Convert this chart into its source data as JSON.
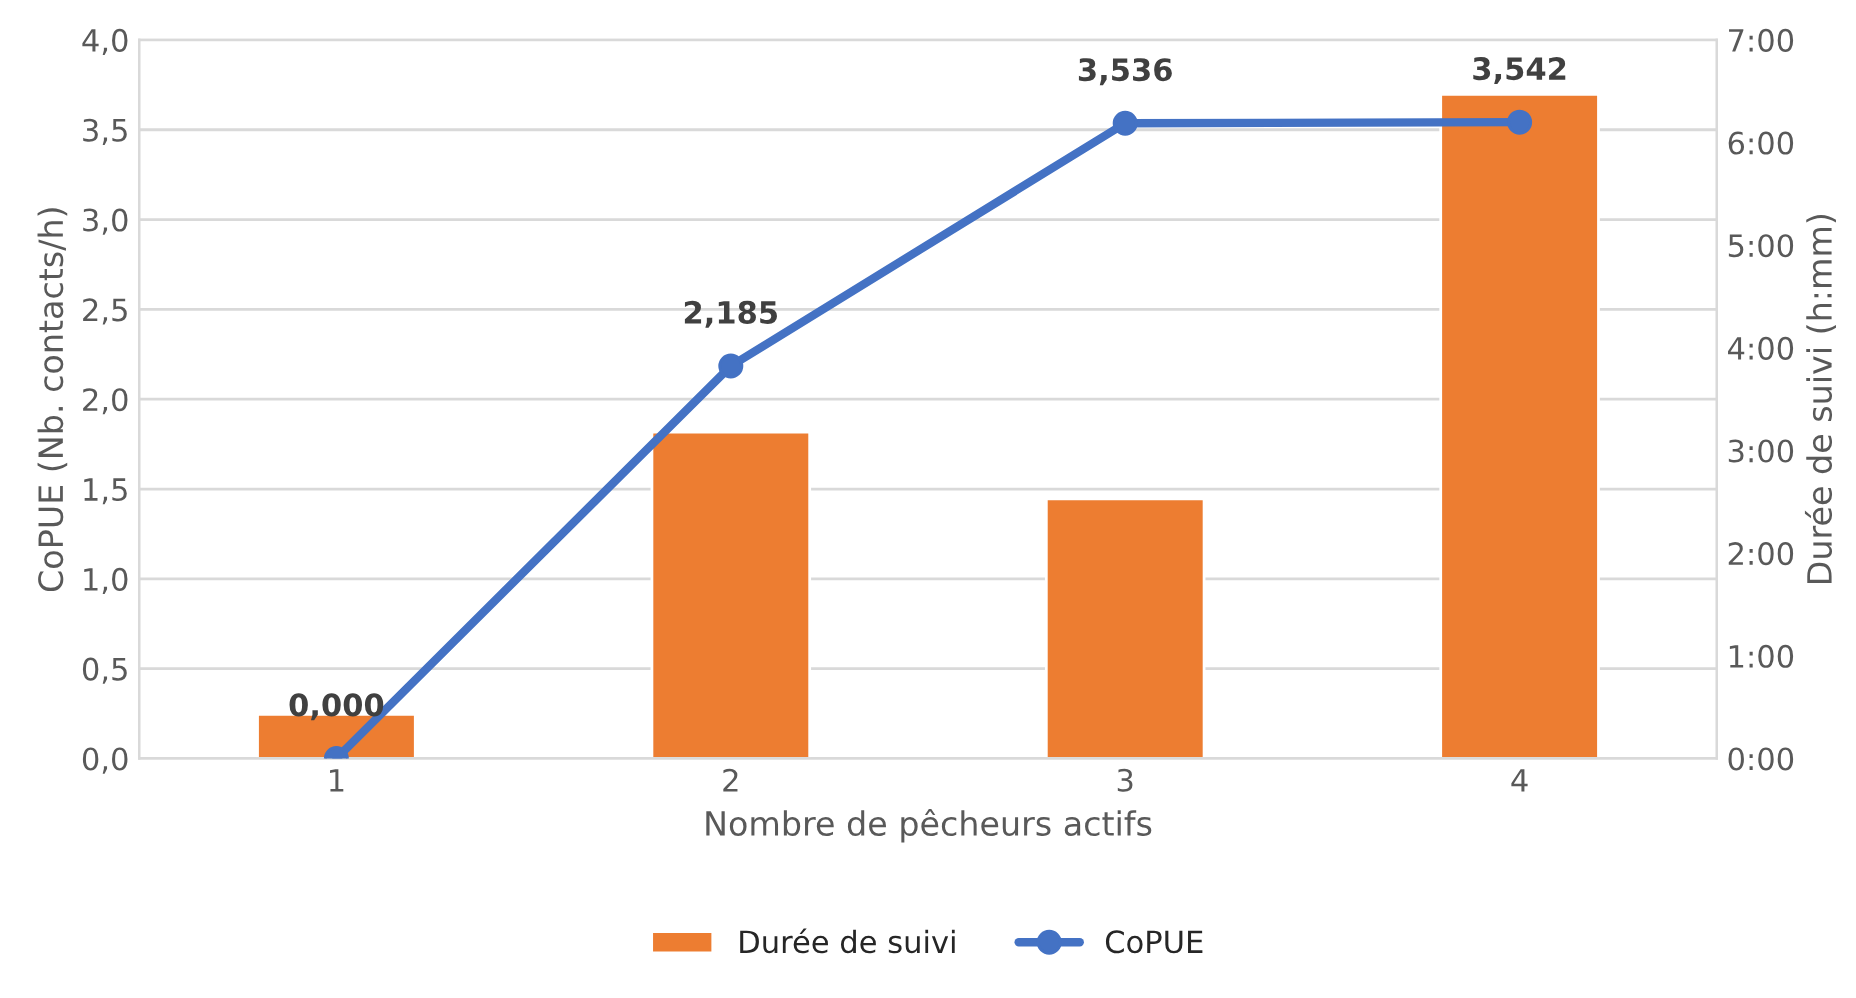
{
  "chart_data": {
    "type": "bar",
    "xlabel": "Nombre de pêcheurs actifs",
    "ylabel": "CoPUE (Nb. contacts/h)",
    "y2label": "Durée de suivi (h:mm)",
    "categories": [
      "1",
      "2",
      "3",
      "4"
    ],
    "series": [
      {
        "name": "Durée de suivi",
        "axis": "y2",
        "color": "#ed7d31",
        "values": [
          0.43,
          3.18,
          2.53,
          6.47
        ]
      },
      {
        "name": "CoPUE",
        "type": "line",
        "axis": "y",
        "color": "#4472c4",
        "marker": "circle",
        "values": [
          0.0,
          2.185,
          3.536,
          3.542
        ],
        "value_labels": [
          "0,000",
          "2,185",
          "3,536",
          "3,542"
        ]
      }
    ],
    "ylim": [
      0,
      4
    ],
    "yticks": [
      {
        "value": 0,
        "label": "0,0"
      },
      {
        "value": 0.5,
        "label": "0,5"
      },
      {
        "value": 1,
        "label": "1,0"
      },
      {
        "value": 1.5,
        "label": "1,5"
      },
      {
        "value": 2,
        "label": "2,0"
      },
      {
        "value": 2.5,
        "label": "2,5"
      },
      {
        "value": 3,
        "label": "3,0"
      },
      {
        "value": 3.5,
        "label": "3,5"
      },
      {
        "value": 4,
        "label": "4,0"
      }
    ],
    "y2lim": [
      0,
      7
    ],
    "y2ticks": [
      {
        "value": 0,
        "label": "0:00"
      },
      {
        "value": 1,
        "label": "1:00"
      },
      {
        "value": 2,
        "label": "2:00"
      },
      {
        "value": 3,
        "label": "3:00"
      },
      {
        "value": 4,
        "label": "4:00"
      },
      {
        "value": 5,
        "label": "5:00"
      },
      {
        "value": 6,
        "label": "6:00"
      },
      {
        "value": 7,
        "label": "7:00"
      }
    ],
    "grid": "y",
    "legend": "bottom"
  }
}
